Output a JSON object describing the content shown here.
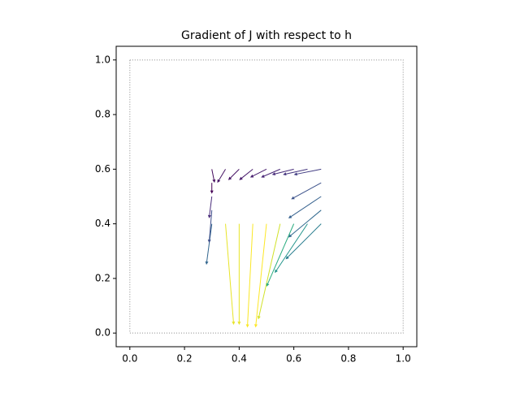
{
  "chart_data": {
    "type": "quiver",
    "title": "Gradient of J with respect to h",
    "colormap": "viridis",
    "x": [
      0.3,
      0.35,
      0.4,
      0.45,
      0.5,
      0.55,
      0.6,
      0.65,
      0.7,
      0.7,
      0.7,
      0.7,
      0.3,
      0.3,
      0.3,
      0.3,
      0.35,
      0.4,
      0.45,
      0.5,
      0.55,
      0.6,
      0.65,
      0.7
    ],
    "y": [
      0.6,
      0.6,
      0.6,
      0.6,
      0.6,
      0.6,
      0.6,
      0.6,
      0.6,
      0.45,
      0.5,
      0.55,
      0.4,
      0.45,
      0.5,
      0.55,
      0.4,
      0.4,
      0.4,
      0.4,
      0.4,
      0.4,
      0.4,
      0.4
    ],
    "u": [
      0.01,
      -0.03,
      -0.04,
      -0.05,
      -0.06,
      -0.07,
      -0.08,
      -0.09,
      -0.1,
      -0.12,
      -0.12,
      -0.11,
      -0.02,
      -0.01,
      -0.01,
      0.0,
      0.03,
      0.0,
      -0.02,
      -0.04,
      -0.08,
      -0.1,
      -0.12,
      -0.13
    ],
    "v": [
      -0.05,
      -0.05,
      -0.04,
      -0.04,
      -0.03,
      -0.03,
      -0.02,
      -0.02,
      -0.02,
      -0.1,
      -0.08,
      -0.06,
      -0.15,
      -0.12,
      -0.08,
      -0.04,
      -0.37,
      -0.37,
      -0.38,
      -0.38,
      -0.35,
      -0.23,
      -0.18,
      -0.13
    ],
    "boundary": {
      "x": [
        0,
        1
      ],
      "y": [
        0,
        1
      ]
    },
    "xlim": [
      -0.05,
      1.05
    ],
    "ylim": [
      -0.05,
      1.05
    ],
    "xticks": [
      {
        "value": 0,
        "label": "0.0"
      },
      0.2,
      0.4,
      0.6,
      0.8,
      {
        "value": 1,
        "label": "1.0"
      }
    ],
    "yticks": [
      {
        "value": 0,
        "label": "0.0"
      },
      0.2,
      0.4,
      0.6,
      0.8,
      {
        "value": 1,
        "label": "1.0"
      }
    ]
  }
}
